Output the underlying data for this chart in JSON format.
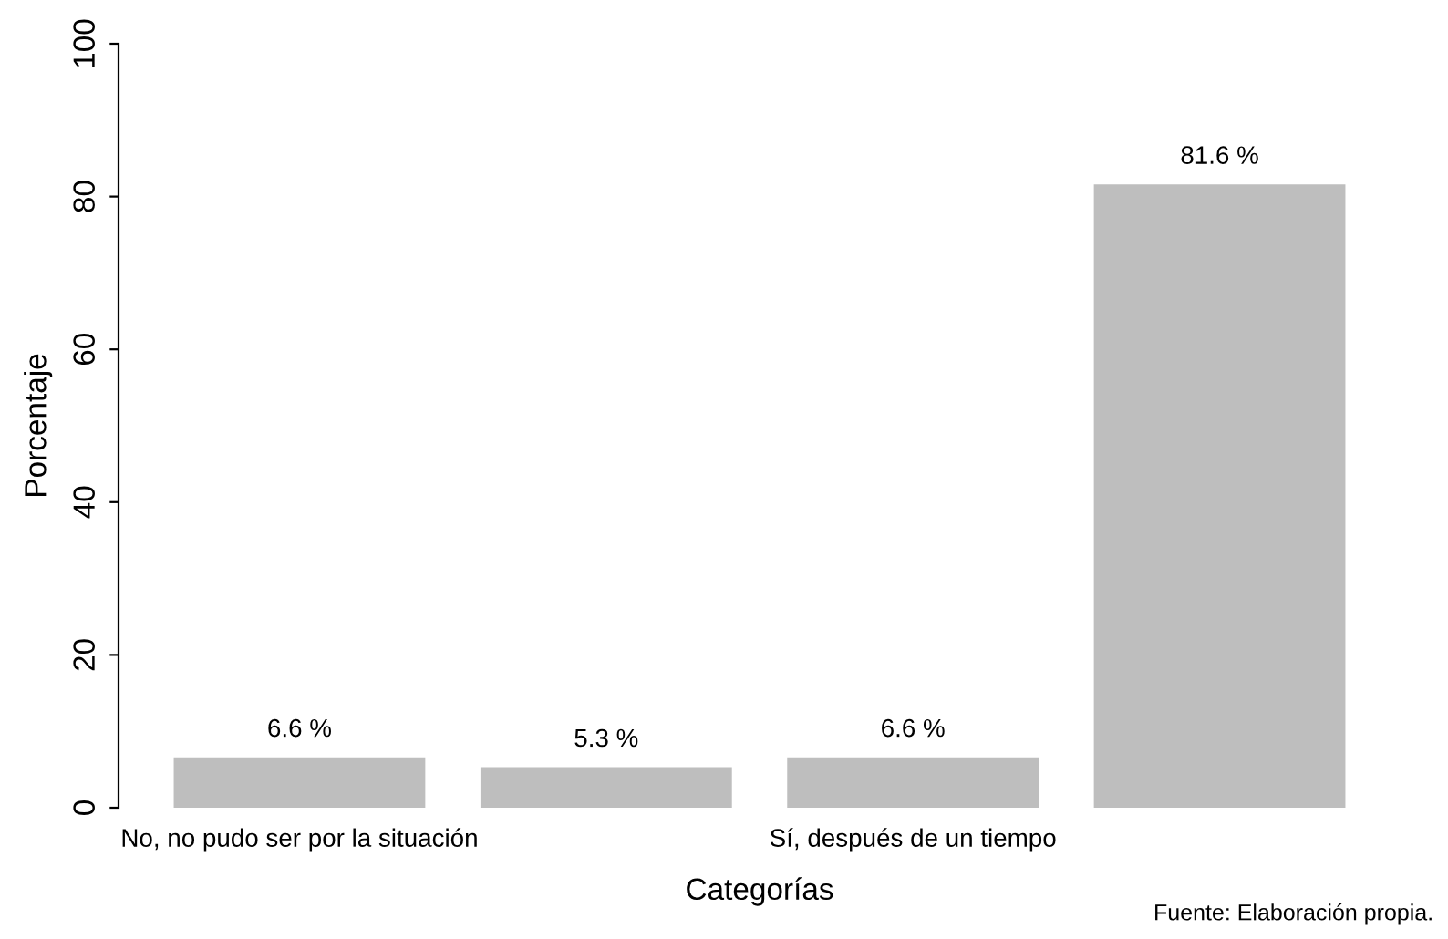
{
  "chart_data": {
    "type": "bar",
    "categories": [
      "No, no pudo ser por la situación",
      null,
      "Sí, después de un tiempo",
      null
    ],
    "values": [
      6.6,
      5.3,
      6.6,
      81.6
    ],
    "value_labels": [
      "6.6 %",
      "5.3 %",
      "6.6 %",
      "81.6 %"
    ],
    "color": "#bebebe",
    "xlabel": "Categorías",
    "ylabel": "Porcentaje",
    "ylim": [
      0,
      100
    ],
    "yticks": [
      0,
      20,
      40,
      60,
      80,
      100
    ],
    "annotations": [
      "Fuente: Elaboración propia."
    ]
  }
}
